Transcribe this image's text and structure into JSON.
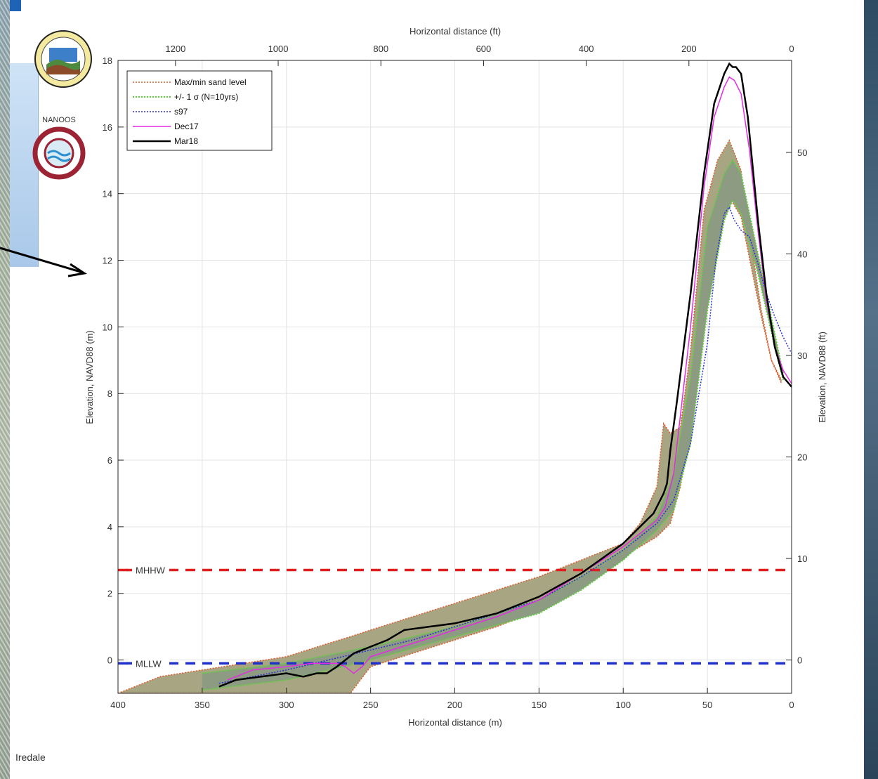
{
  "footer_label": "Iredale",
  "colors": {
    "envelope_fill": "#a8a682",
    "envelope_edge": "#e05a2b",
    "sigma_fill": "#8d9b82",
    "sigma_edge": "#5fcf3f",
    "s97": "#2b2bd6",
    "dec17": "#e22ce2",
    "mar18": "#000000",
    "mhhw": "#e02020",
    "mllw": "#1f2fc8"
  },
  "chart_data": {
    "type": "line",
    "xlabel": "Horizontal distance (m)",
    "ylabel": "Elevation, NAVD88 (m)",
    "x2label": "Horizontal distance (ft)",
    "y2label": "Elevation, NAVD88 (ft)",
    "xlim": [
      400,
      0
    ],
    "ylim": [
      -1,
      18
    ],
    "x2lim": [
      1312,
      0
    ],
    "y2lim": [
      -3.28,
      59.06
    ],
    "xticks": [
      400,
      350,
      300,
      250,
      200,
      150,
      100,
      50,
      0
    ],
    "yticks": [
      0,
      2,
      4,
      6,
      8,
      10,
      12,
      14,
      16,
      18
    ],
    "x2ticks": [
      1200,
      1000,
      800,
      600,
      400,
      200,
      0
    ],
    "y2ticks": [
      0,
      10,
      20,
      30,
      40,
      50
    ],
    "grid": true,
    "legend_position": "top-left",
    "legend": [
      "Max/min sand level",
      "+/- 1 σ (N=10yrs)",
      "s97",
      "Dec17",
      "Mar18"
    ],
    "reference_lines": [
      {
        "label": "MHHW",
        "y": 2.7
      },
      {
        "label": "MLLW",
        "y": -0.1
      }
    ],
    "envelope_maxmin": {
      "name": "Max/min sand level",
      "x": [
        400,
        375,
        350,
        325,
        300,
        275,
        262,
        250,
        225,
        200,
        175,
        150,
        125,
        110,
        100,
        90,
        80,
        76,
        72,
        66,
        60,
        52,
        44,
        37,
        30,
        24,
        18,
        12,
        6
      ],
      "upper": [
        -1,
        -0.5,
        -0.3,
        -0.1,
        0.1,
        0.5,
        0.7,
        0.9,
        1.3,
        1.7,
        2.1,
        2.5,
        3.0,
        3.3,
        3.5,
        4.1,
        5.2,
        7.1,
        6.8,
        7.0,
        9.3,
        13.5,
        15.0,
        15.6,
        14.7,
        12.5,
        10.5,
        9.0,
        8.4
      ],
      "lower": [
        -1,
        -1,
        -1,
        -1,
        -1,
        -1,
        -1,
        -0.2,
        0.2,
        0.6,
        1.0,
        1.5,
        2.2,
        2.7,
        3.1,
        3.4,
        3.7,
        3.9,
        4.1,
        5.2,
        7.0,
        10.5,
        12.8,
        13.9,
        13.3,
        11.8,
        10.3,
        9.0,
        8.3
      ]
    },
    "band_sigma": {
      "name": "+/- 1 σ (N=10yrs)",
      "x": [
        350,
        300,
        250,
        200,
        150,
        125,
        100,
        80,
        70,
        60,
        50,
        40,
        35,
        30,
        20,
        10,
        5
      ],
      "upper": [
        -0.4,
        -0.1,
        0.4,
        1.0,
        1.8,
        2.5,
        3.3,
        4.3,
        5.6,
        8.5,
        13.0,
        14.6,
        15.0,
        14.6,
        12.2,
        9.8,
        8.6
      ],
      "lower": [
        -0.9,
        -0.6,
        0.0,
        0.7,
        1.4,
        2.1,
        3.0,
        3.9,
        4.5,
        6.5,
        10.5,
        13.2,
        13.8,
        13.4,
        11.6,
        9.4,
        8.4
      ]
    },
    "series": [
      {
        "name": "s97",
        "x": [
          340,
          300,
          275,
          250,
          225,
          200,
          175,
          150,
          125,
          100,
          80,
          70,
          60,
          50,
          45,
          40,
          37,
          34,
          30,
          25,
          20,
          15,
          10,
          5,
          0
        ],
        "y": [
          -0.7,
          -0.3,
          0.0,
          0.3,
          0.6,
          1.0,
          1.4,
          1.8,
          2.5,
          3.3,
          4.1,
          4.8,
          6.5,
          9.5,
          12.0,
          13.4,
          13.6,
          13.2,
          12.9,
          12.7,
          11.9,
          11.0,
          10.3,
          9.7,
          9.2
        ]
      },
      {
        "name": "Dec17",
        "x": [
          335,
          320,
          300,
          285,
          270,
          265,
          260,
          255,
          250,
          225,
          200,
          175,
          150,
          125,
          100,
          80,
          75,
          70,
          60,
          52,
          46,
          40,
          37,
          34,
          30,
          25,
          20,
          15,
          10,
          5,
          0
        ],
        "y": [
          -0.6,
          -0.3,
          -0.2,
          -0.1,
          -0.1,
          -0.2,
          -0.4,
          -0.2,
          0.1,
          0.5,
          0.9,
          1.3,
          1.8,
          2.6,
          3.4,
          4.2,
          4.6,
          5.6,
          10.0,
          14.2,
          16.3,
          17.2,
          17.5,
          17.4,
          17.0,
          15.3,
          12.9,
          10.8,
          9.4,
          8.7,
          8.3
        ]
      },
      {
        "name": "Mar18",
        "x": [
          340,
          330,
          315,
          300,
          290,
          282,
          276,
          270,
          260,
          250,
          240,
          230,
          215,
          200,
          175,
          150,
          125,
          100,
          82,
          76,
          74,
          72,
          68,
          60,
          52,
          46,
          40,
          37,
          35,
          33,
          30,
          26,
          20,
          15,
          10,
          5,
          0
        ],
        "y": [
          -0.8,
          -0.6,
          -0.5,
          -0.4,
          -0.5,
          -0.4,
          -0.4,
          -0.2,
          0.2,
          0.4,
          0.6,
          0.9,
          1.0,
          1.1,
          1.4,
          1.9,
          2.6,
          3.5,
          4.4,
          5.0,
          5.3,
          6.3,
          7.8,
          11.0,
          14.6,
          16.7,
          17.6,
          17.9,
          17.8,
          17.8,
          17.6,
          16.3,
          13.2,
          11.0,
          9.4,
          8.5,
          8.2
        ]
      }
    ]
  }
}
